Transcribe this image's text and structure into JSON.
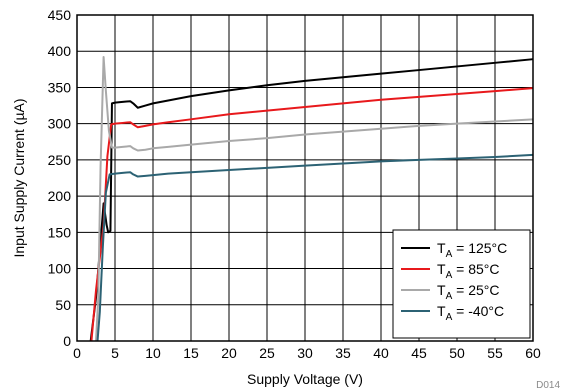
{
  "chart_data": {
    "type": "line",
    "title": "",
    "xlabel": "Supply Voltage (V)",
    "ylabel": "Input Supply Current (µA)",
    "xlim": [
      0,
      60
    ],
    "ylim": [
      0,
      450
    ],
    "xticks": [
      0,
      5,
      10,
      15,
      20,
      25,
      30,
      35,
      40,
      45,
      50,
      55,
      60
    ],
    "yticks": [
      0,
      50,
      100,
      150,
      200,
      250,
      300,
      350,
      400,
      450
    ],
    "grid": true,
    "legend_position": "bottom-right",
    "figure_id": "D014",
    "series": [
      {
        "name_main": "T",
        "name_sub": "A",
        "name_rest": " = 125°C",
        "color": "#000000",
        "points": [
          [
            1.8,
            0
          ],
          [
            2.5,
            60
          ],
          [
            3.2,
            150
          ],
          [
            3.5,
            190
          ],
          [
            3.9,
            160
          ],
          [
            4.1,
            150
          ],
          [
            4.4,
            152
          ],
          [
            4.6,
            328
          ],
          [
            5,
            329
          ],
          [
            6,
            330
          ],
          [
            7,
            331
          ],
          [
            7.4,
            328
          ],
          [
            8,
            322
          ],
          [
            9,
            325
          ],
          [
            10,
            328
          ],
          [
            12,
            332
          ],
          [
            15,
            338
          ],
          [
            20,
            346
          ],
          [
            25,
            353
          ],
          [
            30,
            359
          ],
          [
            35,
            364
          ],
          [
            40,
            369
          ],
          [
            45,
            374
          ],
          [
            50,
            379
          ],
          [
            55,
            384
          ],
          [
            60,
            389
          ]
        ]
      },
      {
        "name_main": "T",
        "name_sub": "A",
        "name_rest": " = 85°C",
        "color": "#e8191c",
        "points": [
          [
            1.9,
            0
          ],
          [
            2.5,
            70
          ],
          [
            3,
            115
          ],
          [
            3.5,
            160
          ],
          [
            4,
            255
          ],
          [
            4.5,
            299
          ],
          [
            5,
            300
          ],
          [
            6,
            301
          ],
          [
            7,
            302
          ],
          [
            7.4,
            299
          ],
          [
            8,
            295
          ],
          [
            9,
            297
          ],
          [
            10,
            299
          ],
          [
            12,
            302
          ],
          [
            15,
            306
          ],
          [
            20,
            313
          ],
          [
            25,
            318
          ],
          [
            30,
            323
          ],
          [
            35,
            328
          ],
          [
            40,
            333
          ],
          [
            45,
            337
          ],
          [
            50,
            341
          ],
          [
            55,
            345
          ],
          [
            60,
            349
          ]
        ]
      },
      {
        "name_main": "T",
        "name_sub": "A",
        "name_rest": " = 25°C",
        "color": "#a9a9a9",
        "points": [
          [
            2.5,
            0
          ],
          [
            2.8,
            60
          ],
          [
            3.1,
            240
          ],
          [
            3.5,
            392
          ],
          [
            3.8,
            345
          ],
          [
            4.2,
            290
          ],
          [
            4.6,
            267
          ],
          [
            5,
            267
          ],
          [
            6,
            268
          ],
          [
            7,
            269
          ],
          [
            7.4,
            266
          ],
          [
            8,
            263
          ],
          [
            9,
            264
          ],
          [
            10,
            266
          ],
          [
            12,
            268
          ],
          [
            15,
            271
          ],
          [
            20,
            276
          ],
          [
            25,
            280
          ],
          [
            30,
            285
          ],
          [
            35,
            289
          ],
          [
            40,
            293
          ],
          [
            45,
            297
          ],
          [
            50,
            300
          ],
          [
            55,
            303
          ],
          [
            60,
            306
          ]
        ]
      },
      {
        "name_main": "T",
        "name_sub": "A",
        "name_rest": " = -40°C",
        "color": "#2c6274",
        "points": [
          [
            2.7,
            0
          ],
          [
            3,
            40
          ],
          [
            3.4,
            130
          ],
          [
            3.8,
            205
          ],
          [
            4.3,
            230
          ],
          [
            5,
            231
          ],
          [
            6,
            232
          ],
          [
            7,
            233
          ],
          [
            7.4,
            230
          ],
          [
            8,
            227
          ],
          [
            9,
            228
          ],
          [
            10,
            229
          ],
          [
            12,
            231
          ],
          [
            15,
            233
          ],
          [
            20,
            236
          ],
          [
            25,
            239
          ],
          [
            30,
            242
          ],
          [
            35,
            245
          ],
          [
            40,
            248
          ],
          [
            45,
            250
          ],
          [
            50,
            252
          ],
          [
            55,
            254
          ],
          [
            60,
            257
          ]
        ]
      }
    ]
  }
}
